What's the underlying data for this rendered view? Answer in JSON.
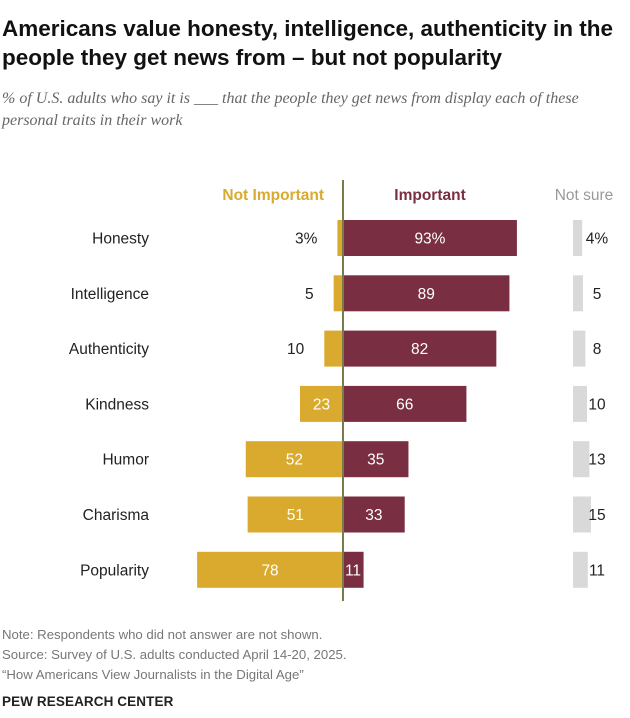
{
  "title": "Americans value honesty, intelligence, authenticity in the people they get news from – but not popularity",
  "subtitle": "% of U.S. adults who say it is ___ that the people they get news from display each of these personal traits in their work",
  "colors": {
    "not_important": "#D9AA2D",
    "important": "#7A2E42",
    "not_sure": "#D9D9D9",
    "axis": "#7A7A4A"
  },
  "chart_data": {
    "type": "bar",
    "categories": [
      "Honesty",
      "Intelligence",
      "Authenticity",
      "Kindness",
      "Humor",
      "Charisma",
      "Popularity"
    ],
    "series": [
      {
        "name": "Not Important",
        "values": [
          3,
          5,
          10,
          23,
          52,
          51,
          78
        ],
        "labels": [
          "3%",
          "5",
          "10",
          "23",
          "52",
          "51",
          "78"
        ]
      },
      {
        "name": "Important",
        "values": [
          93,
          89,
          82,
          66,
          35,
          33,
          11
        ],
        "labels": [
          "93%",
          "89",
          "82",
          "66",
          "35",
          "33",
          "11"
        ]
      },
      {
        "name": "Not sure",
        "values": [
          4,
          5,
          8,
          10,
          13,
          15,
          11
        ],
        "labels": [
          "4%",
          "5",
          "8",
          "10",
          "13",
          "15",
          "11"
        ]
      }
    ]
  },
  "notes": {
    "note": "Note: Respondents who did not answer are not shown.",
    "source": "Source: Survey of U.S. adults conducted April 14-20, 2025.",
    "report": "“How Americans View Journalists in the Digital Age”"
  },
  "brand": "PEW RESEARCH CENTER"
}
